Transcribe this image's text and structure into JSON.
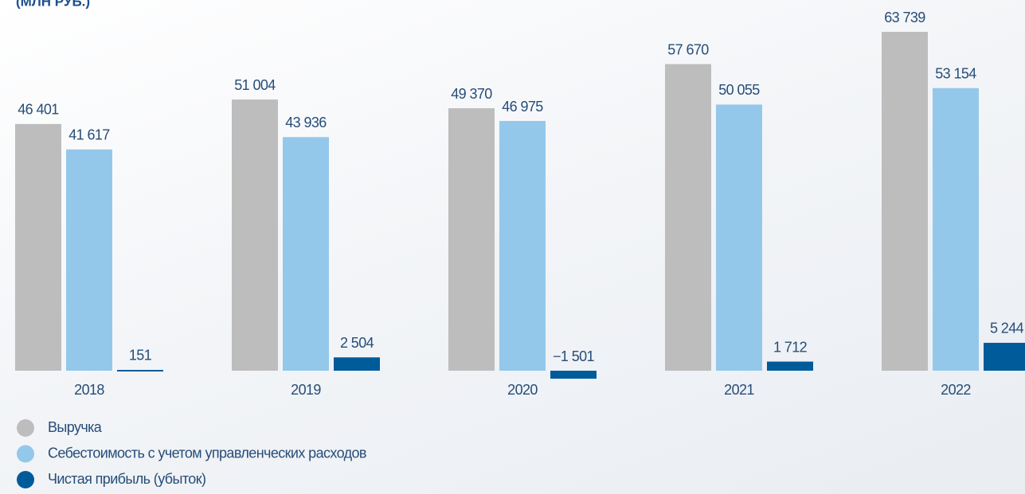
{
  "chart_data": {
    "type": "bar",
    "title": "(МЛН РУБ.)",
    "categories": [
      "2018",
      "2019",
      "2020",
      "2021",
      "2022"
    ],
    "series": [
      {
        "name": "Выручка",
        "color": "#bdbdbd",
        "values": [
          46401,
          51004,
          49370,
          57670,
          63739
        ],
        "value_labels": [
          "46 401",
          "51 004",
          "49 370",
          "57 670",
          "63 739"
        ]
      },
      {
        "name": "Себестоимость с учетом управленческих расходов",
        "color": "#94c8ea",
        "values": [
          41617,
          43936,
          46975,
          50055,
          53154
        ],
        "value_labels": [
          "41 617",
          "43 936",
          "46 975",
          "50 055",
          "53 154"
        ]
      },
      {
        "name": "Чистая прибыль (убыток)",
        "color": "#005b9a",
        "values": [
          151,
          2504,
          -1501,
          1712,
          5244
        ],
        "value_labels": [
          "151",
          "2 504",
          "−1 501",
          "1 712",
          "5 244"
        ]
      }
    ]
  }
}
